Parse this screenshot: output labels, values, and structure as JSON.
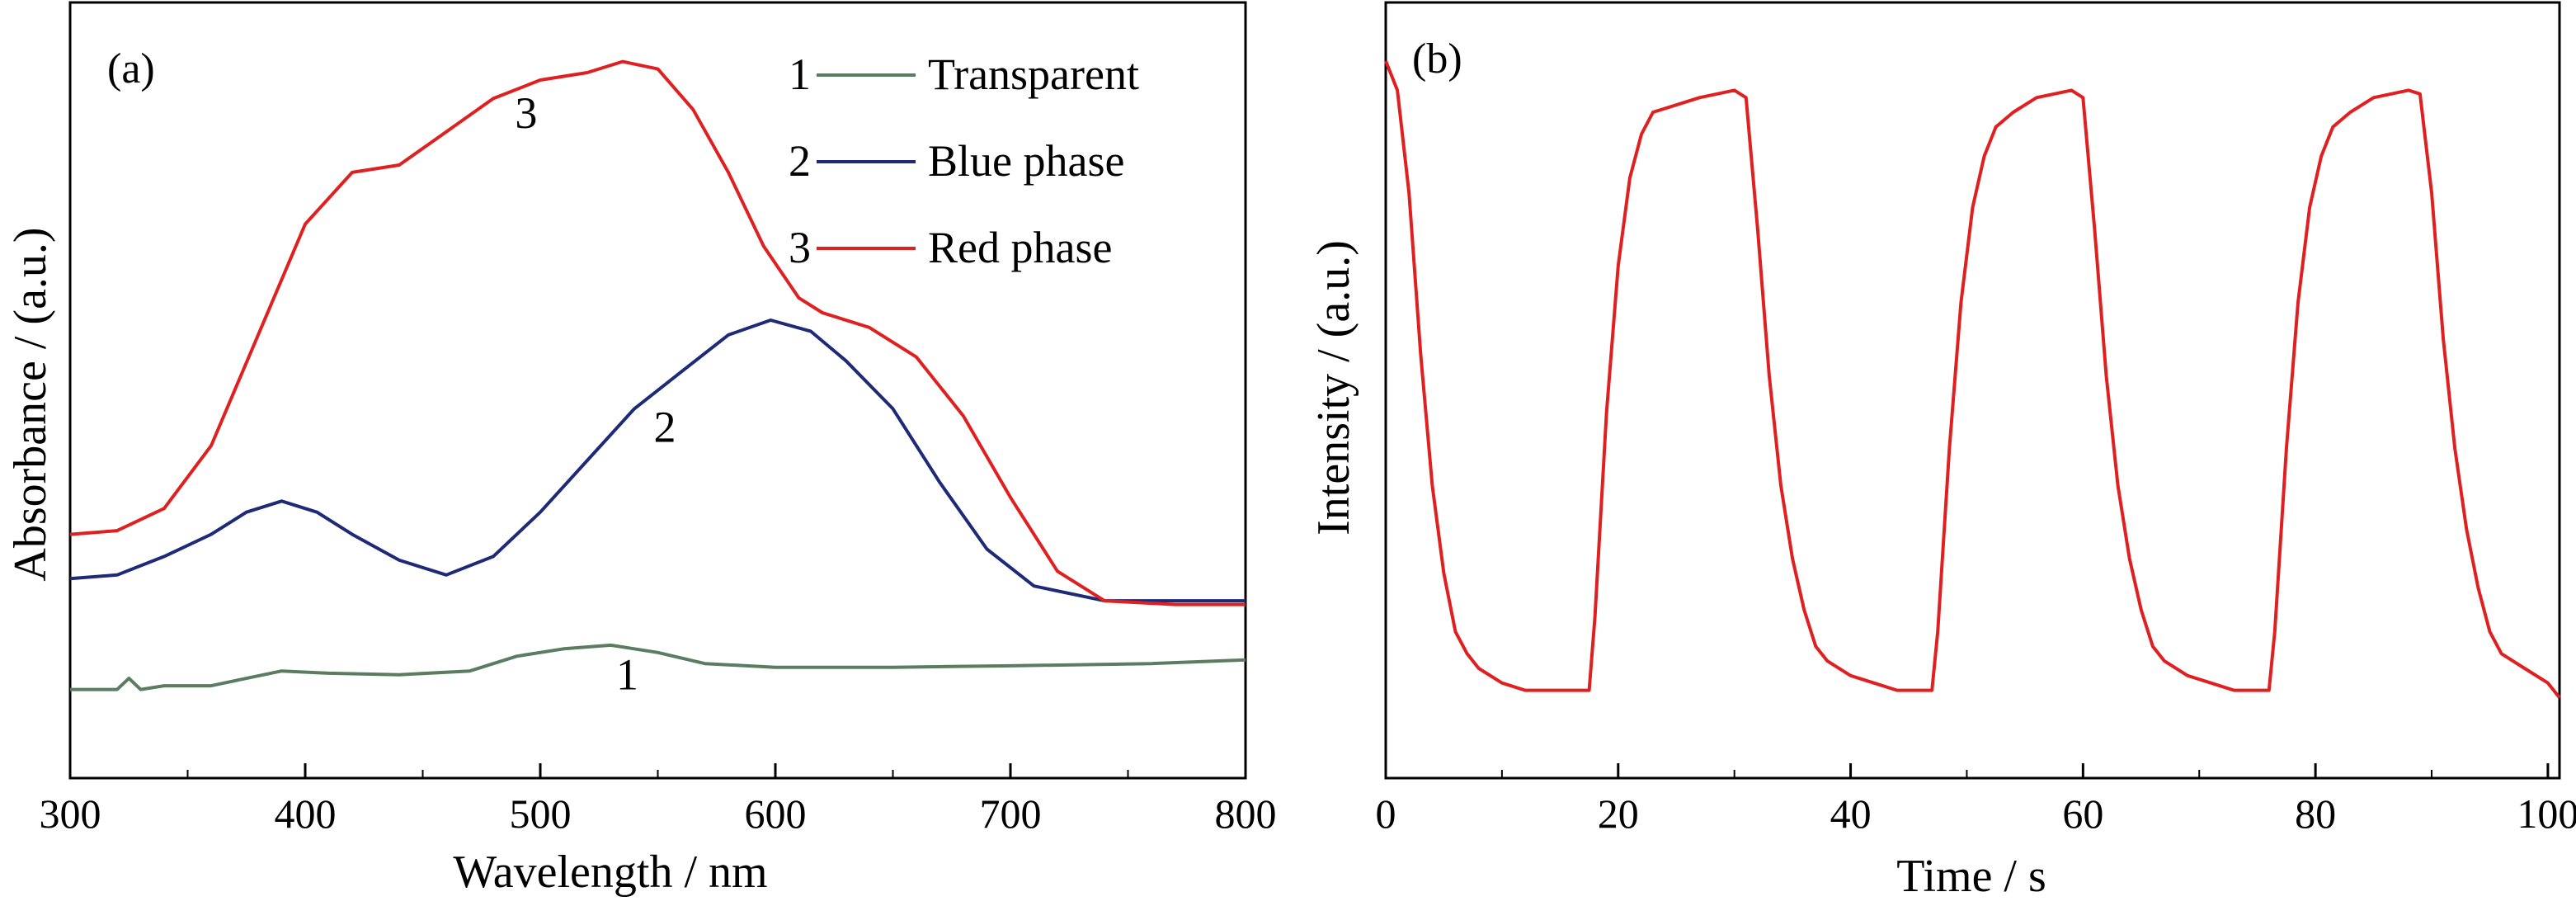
{
  "chart_data": [
    {
      "type": "line",
      "panel_label": "(a)",
      "xlabel": "Wavelength / nm",
      "ylabel": "Absorbance / (a.u.)",
      "xlim": [
        300,
        800
      ],
      "ylim": [
        0,
        1.05
      ],
      "x_ticks": [
        300,
        400,
        500,
        600,
        700,
        800
      ],
      "x_tick_labels": [
        "300",
        "400",
        "500",
        "600",
        "700",
        "800"
      ],
      "x_minor_step": 50,
      "y_tick_labels_shown": false,
      "grid": false,
      "legend_position": "top-right",
      "series": [
        {
          "name": "Transparent",
          "marker": "1",
          "color": "#5a7d61",
          "points": [
            [
              300,
              0.12
            ],
            [
              320,
              0.12
            ],
            [
              325,
              0.135
            ],
            [
              330,
              0.12
            ],
            [
              340,
              0.125
            ],
            [
              360,
              0.125
            ],
            [
              375,
              0.135
            ],
            [
              390,
              0.145
            ],
            [
              410,
              0.142
            ],
            [
              440,
              0.14
            ],
            [
              470,
              0.145
            ],
            [
              490,
              0.165
            ],
            [
              510,
              0.175
            ],
            [
              530,
              0.18
            ],
            [
              550,
              0.17
            ],
            [
              570,
              0.155
            ],
            [
              600,
              0.15
            ],
            [
              650,
              0.15
            ],
            [
              700,
              0.152
            ],
            [
              760,
              0.155
            ],
            [
              800,
              0.16
            ]
          ]
        },
        {
          "name": "Blue phase",
          "marker": "2",
          "color": "#1e2a78",
          "points": [
            [
              300,
              0.27
            ],
            [
              320,
              0.275
            ],
            [
              340,
              0.3
            ],
            [
              360,
              0.33
            ],
            [
              375,
              0.36
            ],
            [
              390,
              0.375
            ],
            [
              405,
              0.36
            ],
            [
              420,
              0.33
            ],
            [
              440,
              0.295
            ],
            [
              460,
              0.275
            ],
            [
              480,
              0.3
            ],
            [
              500,
              0.36
            ],
            [
              520,
              0.43
            ],
            [
              540,
              0.5
            ],
            [
              560,
              0.55
            ],
            [
              580,
              0.6
            ],
            [
              598,
              0.62
            ],
            [
              615,
              0.605
            ],
            [
              630,
              0.565
            ],
            [
              650,
              0.5
            ],
            [
              670,
              0.4
            ],
            [
              690,
              0.31
            ],
            [
              710,
              0.26
            ],
            [
              740,
              0.24
            ],
            [
              770,
              0.24
            ],
            [
              800,
              0.24
            ]
          ]
        },
        {
          "name": "Red phase",
          "marker": "3",
          "color": "#e02020",
          "points": [
            [
              300,
              0.33
            ],
            [
              320,
              0.335
            ],
            [
              340,
              0.365
            ],
            [
              360,
              0.45
            ],
            [
              380,
              0.6
            ],
            [
              400,
              0.75
            ],
            [
              420,
              0.82
            ],
            [
              440,
              0.83
            ],
            [
              460,
              0.875
            ],
            [
              480,
              0.92
            ],
            [
              500,
              0.945
            ],
            [
              520,
              0.955
            ],
            [
              535,
              0.97
            ],
            [
              550,
              0.96
            ],
            [
              565,
              0.905
            ],
            [
              580,
              0.82
            ],
            [
              595,
              0.72
            ],
            [
              610,
              0.65
            ],
            [
              620,
              0.63
            ],
            [
              640,
              0.61
            ],
            [
              660,
              0.57
            ],
            [
              680,
              0.49
            ],
            [
              700,
              0.38
            ],
            [
              720,
              0.28
            ],
            [
              740,
              0.24
            ],
            [
              770,
              0.235
            ],
            [
              800,
              0.235
            ]
          ]
        }
      ],
      "curve_labels": [
        {
          "text": "1",
          "x": 537,
          "y": 0.12
        },
        {
          "text": "2",
          "x": 553,
          "y": 0.455
        },
        {
          "text": "3",
          "x": 494,
          "y": 0.88
        }
      ]
    },
    {
      "type": "line",
      "panel_label": "(b)",
      "xlabel": "Time / s",
      "ylabel": "Intensity / (a.u.)",
      "xlim": [
        0,
        101
      ],
      "ylim": [
        0,
        1.06
      ],
      "x_ticks": [
        0,
        20,
        40,
        60,
        80,
        100
      ],
      "x_tick_labels": [
        "0",
        "20",
        "40",
        "60",
        "80",
        "100"
      ],
      "x_minor_step": 10,
      "y_tick_labels_shown": false,
      "grid": false,
      "series": [
        {
          "color": "#e02020",
          "points": [
            [
              0,
              0.98
            ],
            [
              1,
              0.94
            ],
            [
              2,
              0.8
            ],
            [
              3,
              0.58
            ],
            [
              4,
              0.4
            ],
            [
              5,
              0.28
            ],
            [
              6,
              0.2
            ],
            [
              7,
              0.17
            ],
            [
              8,
              0.15
            ],
            [
              10,
              0.13
            ],
            [
              12,
              0.12
            ],
            [
              14,
              0.12
            ],
            [
              16,
              0.12
            ],
            [
              17.5,
              0.12
            ],
            [
              18,
              0.22
            ],
            [
              19,
              0.5
            ],
            [
              20,
              0.7
            ],
            [
              21,
              0.82
            ],
            [
              22,
              0.88
            ],
            [
              23,
              0.91
            ],
            [
              25,
              0.92
            ],
            [
              27,
              0.93
            ],
            [
              30,
              0.94
            ],
            [
              31,
              0.93
            ],
            [
              32,
              0.75
            ],
            [
              33,
              0.55
            ],
            [
              34,
              0.4
            ],
            [
              35,
              0.3
            ],
            [
              36,
              0.23
            ],
            [
              37,
              0.18
            ],
            [
              38,
              0.16
            ],
            [
              40,
              0.14
            ],
            [
              42,
              0.13
            ],
            [
              44,
              0.12
            ],
            [
              46,
              0.12
            ],
            [
              47,
              0.12
            ],
            [
              47.5,
              0.2
            ],
            [
              48.5,
              0.45
            ],
            [
              49.5,
              0.65
            ],
            [
              50.5,
              0.78
            ],
            [
              51.5,
              0.85
            ],
            [
              52.5,
              0.89
            ],
            [
              54,
              0.91
            ],
            [
              56,
              0.93
            ],
            [
              59,
              0.94
            ],
            [
              60,
              0.93
            ],
            [
              61,
              0.75
            ],
            [
              62,
              0.55
            ],
            [
              63,
              0.4
            ],
            [
              64,
              0.3
            ],
            [
              65,
              0.23
            ],
            [
              66,
              0.18
            ],
            [
              67,
              0.16
            ],
            [
              69,
              0.14
            ],
            [
              71,
              0.13
            ],
            [
              73,
              0.12
            ],
            [
              75,
              0.12
            ],
            [
              76,
              0.12
            ],
            [
              76.5,
              0.2
            ],
            [
              77.5,
              0.45
            ],
            [
              78.5,
              0.65
            ],
            [
              79.5,
              0.78
            ],
            [
              80.5,
              0.85
            ],
            [
              81.5,
              0.89
            ],
            [
              83,
              0.91
            ],
            [
              85,
              0.93
            ],
            [
              88,
              0.94
            ],
            [
              89,
              0.935
            ],
            [
              90,
              0.8
            ],
            [
              91,
              0.6
            ],
            [
              92,
              0.45
            ],
            [
              93,
              0.34
            ],
            [
              94,
              0.26
            ],
            [
              95,
              0.2
            ],
            [
              96,
              0.17
            ],
            [
              98,
              0.15
            ],
            [
              100,
              0.13
            ],
            [
              101,
              0.11
            ]
          ]
        }
      ]
    }
  ],
  "colors": {
    "axis": "#000000",
    "background": "#ffffff"
  }
}
